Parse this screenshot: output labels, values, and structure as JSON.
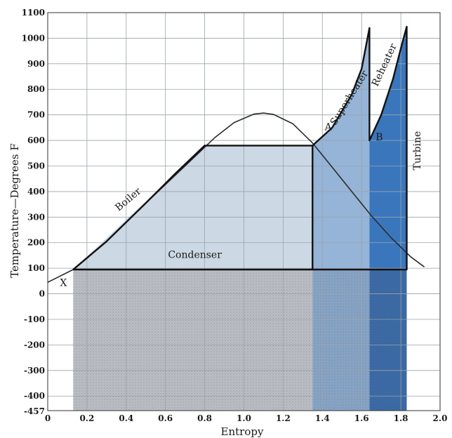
{
  "chart_data": {
    "type": "area",
    "title": "",
    "xlabel": "Entropy",
    "ylabel": "Temperature—Degrees F",
    "xlim": [
      0,
      2.0
    ],
    "ylim": [
      -457,
      1100
    ],
    "grid": true,
    "x_ticks": [
      {
        "value": 0,
        "label": "0"
      },
      {
        "value": 0.2,
        "label": "0.2"
      },
      {
        "value": 0.4,
        "label": "0.4"
      },
      {
        "value": 0.6,
        "label": "0.6"
      },
      {
        "value": 0.8,
        "label": "0.8"
      },
      {
        "value": 1.0,
        "label": "1.0"
      },
      {
        "value": 1.2,
        "label": "1.2"
      },
      {
        "value": 1.4,
        "label": "1.4"
      },
      {
        "value": 1.6,
        "label": "1.6"
      },
      {
        "value": 1.8,
        "label": "1.8"
      },
      {
        "value": 2.0,
        "label": "2.0"
      }
    ],
    "y_ticks": [
      {
        "value": 1100,
        "label": "1100"
      },
      {
        "value": 1000,
        "label": "1000"
      },
      {
        "value": 900,
        "label": "900"
      },
      {
        "value": 800,
        "label": "800"
      },
      {
        "value": 700,
        "label": "700"
      },
      {
        "value": 600,
        "label": "600"
      },
      {
        "value": 500,
        "label": "500"
      },
      {
        "value": 400,
        "label": "400"
      },
      {
        "value": 300,
        "label": "300"
      },
      {
        "value": 200,
        "label": "200"
      },
      {
        "value": 100,
        "label": "100"
      },
      {
        "value": 0,
        "label": "0"
      },
      {
        "value": -100,
        "label": "-100"
      },
      {
        "value": -200,
        "label": "-200"
      },
      {
        "value": -300,
        "label": "-300"
      },
      {
        "value": -400,
        "label": "-400"
      },
      {
        "value": -457,
        "label": "-457"
      }
    ],
    "saturation_dome": {
      "x": [
        0.0,
        0.13,
        0.3,
        0.5,
        0.7,
        0.85,
        0.95,
        1.05,
        1.1,
        1.15,
        1.25,
        1.35,
        1.45,
        1.55,
        1.65,
        1.75,
        1.85,
        1.92
      ],
      "y": [
        45,
        95,
        205,
        355,
        500,
        610,
        670,
        703,
        707,
        702,
        665,
        590,
        495,
        400,
        305,
        220,
        145,
        105
      ]
    },
    "regions": [
      {
        "name": "boiler",
        "color": "#c9d6e3",
        "x": [
          0.13,
          0.8,
          1.35,
          1.35,
          0.13
        ],
        "y": [
          95,
          580,
          580,
          95,
          95
        ]
      },
      {
        "name": "superheater",
        "color": "#8fb0d6",
        "x": [
          1.35,
          1.35,
          1.45,
          1.55,
          1.6,
          1.64,
          1.64,
          1.35
        ],
        "y": [
          95,
          580,
          650,
          780,
          880,
          1040,
          95,
          95
        ]
      },
      {
        "name": "reheater",
        "color": "#2f6fb8",
        "x": [
          1.64,
          1.64,
          1.7,
          1.76,
          1.8,
          1.83,
          1.83,
          1.64
        ],
        "y": [
          95,
          600,
          700,
          840,
          960,
          1045,
          95,
          95
        ]
      },
      {
        "name": "rejected-heat",
        "color": "#b7bcc2",
        "x": [
          0.13,
          1.35,
          1.35,
          0.13
        ],
        "y": [
          95,
          95,
          -457,
          -457
        ]
      },
      {
        "name": "superheater-lower",
        "color": "#7f9fc4",
        "x": [
          1.35,
          1.64,
          1.64,
          1.35
        ],
        "y": [
          95,
          95,
          -457,
          -457
        ]
      },
      {
        "name": "reheater-lower",
        "color": "#2b5fa0",
        "x": [
          1.64,
          1.83,
          1.83,
          1.64
        ],
        "y": [
          95,
          95,
          -457,
          -457
        ]
      }
    ],
    "cycle_line": {
      "x": [
        0.13,
        0.3,
        0.5,
        0.65,
        0.8,
        1.35,
        1.35,
        1.35,
        1.45,
        1.55,
        1.6,
        1.64,
        1.64,
        1.7,
        1.76,
        1.8,
        1.83,
        1.83,
        0.13
      ],
      "y": [
        95,
        205,
        355,
        470,
        580,
        580,
        95,
        580,
        650,
        780,
        880,
        1040,
        600,
        700,
        840,
        960,
        1045,
        95,
        95
      ]
    },
    "annotations": [
      {
        "text": "Boiler",
        "x": 0.42,
        "y": 360,
        "angle": -40
      },
      {
        "text": "Condenser",
        "x": 0.75,
        "y": 140,
        "angle": 0
      },
      {
        "text": "Superheater",
        "x": 1.55,
        "y": 760,
        "angle": -58
      },
      {
        "text": "Reheater",
        "x": 1.73,
        "y": 890,
        "angle": -65
      },
      {
        "text": "Turbine",
        "x": 1.9,
        "y": 560,
        "angle": -90
      },
      {
        "text": "X",
        "x": 0.08,
        "y": 30,
        "angle": 0
      },
      {
        "text": "A",
        "x": 1.43,
        "y": 640,
        "angle": 0
      },
      {
        "text": "B",
        "x": 1.69,
        "y": 600,
        "angle": 0
      }
    ]
  }
}
